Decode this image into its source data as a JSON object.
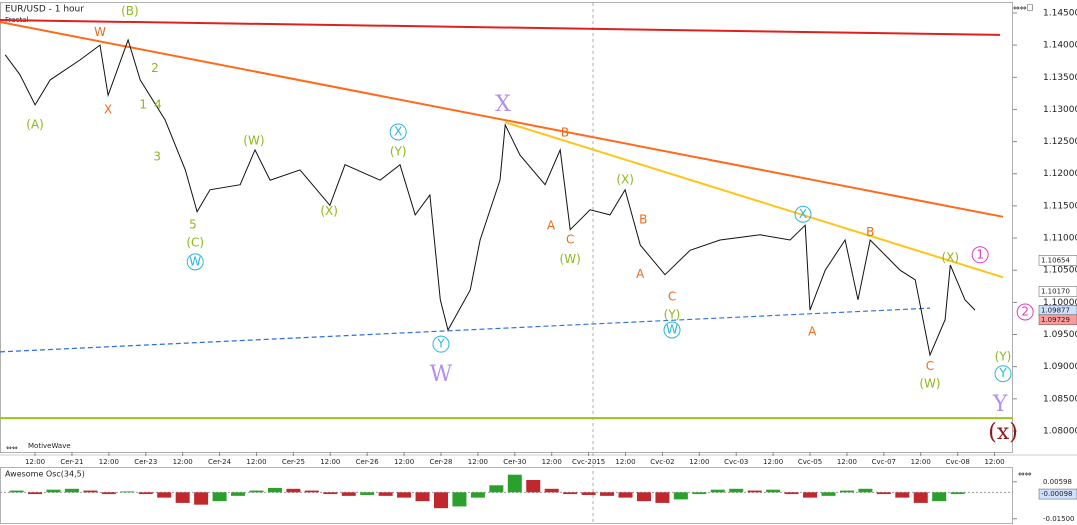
{
  "chart_data": [
    {
      "type": "line",
      "title": "EUR/USD - 1 hour",
      "subtitle": "Fractal",
      "footer": "MotiveWave",
      "color": "#111111",
      "x": [
        -0.81,
        -0.41,
        0,
        0.41,
        1.22,
        1.76,
        1.98,
        2.52,
        2.85,
        3.52,
        4.07,
        4.39,
        4.74,
        5.56,
        5.96,
        6.37,
        7.18,
        7.99,
        8.4,
        9.35,
        9.89,
        10.3,
        10.7,
        10.98,
        11.19,
        11.79,
        12.06,
        12.6,
        12.74,
        13.14,
        13.82,
        14.23,
        14.5,
        15.04,
        15.58,
        15.99,
        16.4,
        17.07,
        17.75,
        18.56,
        19.65,
        20.46,
        20.87,
        21.0,
        21.41,
        21.95,
        22.3,
        22.63,
        23.44,
        23.85,
        24.25,
        24.66,
        24.8,
        25.2,
        25.47
      ],
      "values": [
        1.1385,
        1.1354,
        1.1307,
        1.1346,
        1.1377,
        1.14,
        1.1322,
        1.1408,
        1.1346,
        1.1284,
        1.1206,
        1.1141,
        1.1175,
        1.1183,
        1.1237,
        1.119,
        1.1206,
        1.1151,
        1.1214,
        1.119,
        1.1214,
        1.1136,
        1.1167,
        1.1004,
        1.0957,
        1.1019,
        1.1097,
        1.119,
        1.1276,
        1.1229,
        1.1183,
        1.1237,
        1.1113,
        1.1144,
        1.1136,
        1.1175,
        1.1089,
        1.1043,
        1.1081,
        1.1097,
        1.1105,
        1.1097,
        1.112,
        1.0988,
        1.105,
        1.1097,
        1.1004,
        1.1097,
        1.105,
        1.1035,
        1.0918,
        1.0973,
        1.1058,
        1.1004,
        1.0988
      ],
      "xlim": [
        -0.95,
        26.5
      ],
      "ylim": [
        1.07673,
        1.14624
      ],
      "xticks": [
        {
          "value": 0,
          "label": "12:00"
        },
        {
          "value": 1,
          "label": "Cer-21"
        },
        {
          "value": 2,
          "label": "12:00"
        },
        {
          "value": 3,
          "label": "Cer-23"
        },
        {
          "value": 4,
          "label": "12:00"
        },
        {
          "value": 5,
          "label": "Cer-24"
        },
        {
          "value": 6,
          "label": "12:00"
        },
        {
          "value": 7,
          "label": "Cer-25"
        },
        {
          "value": 8,
          "label": "12:00"
        },
        {
          "value": 9,
          "label": "Cer-26"
        },
        {
          "value": 10,
          "label": "12:00"
        },
        {
          "value": 11,
          "label": "Cer-28"
        },
        {
          "value": 12,
          "label": "12:00"
        },
        {
          "value": 13,
          "label": "Cer-30"
        },
        {
          "value": 14,
          "label": "12:00"
        },
        {
          "value": 15,
          "label": "Cvc-2015"
        },
        {
          "value": 16,
          "label": "12:00"
        },
        {
          "value": 17,
          "label": "Cvc-02"
        },
        {
          "value": 18,
          "label": "12:00"
        },
        {
          "value": 19,
          "label": "Cvc-03"
        },
        {
          "value": 20,
          "label": "12:00"
        },
        {
          "value": 21,
          "label": "Cvc-05"
        },
        {
          "value": 22,
          "label": "12:00"
        },
        {
          "value": 23,
          "label": "Cvc-07"
        },
        {
          "value": 24,
          "label": "12:00"
        },
        {
          "value": 25,
          "label": "Cvc-08"
        },
        {
          "value": 26,
          "label": "12:00"
        }
      ],
      "yticks": [
        {
          "value": 1.145,
          "label": "1.14500"
        },
        {
          "value": 1.14,
          "label": "1.14000"
        },
        {
          "value": 1.135,
          "label": "1.13500"
        },
        {
          "value": 1.13,
          "label": "1.13000"
        },
        {
          "value": 1.125,
          "label": "1.12500"
        },
        {
          "value": 1.12,
          "label": "1.12000"
        },
        {
          "value": 1.115,
          "label": "1.11500"
        },
        {
          "value": 1.11,
          "label": "1.11000"
        },
        {
          "value": 1.105,
          "label": "1.10500"
        },
        {
          "value": 1.1,
          "label": "1.10000"
        },
        {
          "value": 1.095,
          "label": "1.09500"
        },
        {
          "value": 1.09,
          "label": "1.09000"
        },
        {
          "value": 1.085,
          "label": "1.08500"
        },
        {
          "value": 1.08,
          "label": "1.08000"
        }
      ],
      "price_labels": [
        {
          "value": 1.10654,
          "color": "#ffffff"
        },
        {
          "value": {
            "value": 1.1017,
            "label": "1.10170"
          },
          "color": "#ffffff"
        },
        {
          "value": 1.09877,
          "color": "#cfe0ff"
        },
        {
          "value": 1.09729,
          "color": "#ff9a9a"
        }
      ],
      "session_break_x": 15.12,
      "trend_lines": [
        {
          "color": "#e0201c",
          "dashed": false,
          "x": [
            -0.95,
            26.15
          ],
          "y": [
            1.1439,
            1.1416
          ]
        },
        {
          "color": "#ff6a1a",
          "dashed": false,
          "x": [
            -0.95,
            26.23
          ],
          "y": [
            1.1436,
            1.1133
          ]
        },
        {
          "color": "#ffc41a",
          "dashed": false,
          "x": [
            12.74,
            26.23
          ],
          "y": [
            1.128,
            1.1039
          ]
        },
        {
          "color": "#2f6fe0",
          "dashed": true,
          "x": [
            -0.95,
            24.25
          ],
          "y": [
            1.0923,
            1.0991
          ]
        },
        {
          "color": "#9cc21a",
          "dashed": false,
          "x": [
            -0.95,
            26.5
          ],
          "y": [
            1.082,
            1.082
          ]
        }
      ],
      "annotations": [
        {
          "text": "(A)",
          "x": 0,
          "y": 1.1276,
          "color": "#8cb81a"
        },
        {
          "text": "W",
          "x": 1.76,
          "y": 1.142,
          "color": "#f06a1a"
        },
        {
          "text": "(B)",
          "x": 2.57,
          "y": 1.1452,
          "color": "#8cb81a"
        },
        {
          "text": "X",
          "x": 1.98,
          "y": 1.1299,
          "color": "#f06a1a"
        },
        {
          "text": "2",
          "x": 3.25,
          "y": 1.1364,
          "color": "#8cb81a"
        },
        {
          "text": "1",
          "x": 2.93,
          "y": 1.1307,
          "color": "#8cb81a"
        },
        {
          "text": "4",
          "x": 3.33,
          "y": 1.1307,
          "color": "#8cb81a"
        },
        {
          "text": "3",
          "x": 3.31,
          "y": 1.1226,
          "color": "#8cb81a"
        },
        {
          "text": "5",
          "x": 4.28,
          "y": 1.112,
          "color": "#8cb81a"
        },
        {
          "text": "(C)",
          "x": 4.34,
          "y": 1.1092,
          "color": "#8cb81a"
        },
        {
          "text": "W",
          "x": 4.34,
          "y": 1.1063,
          "color": "#29b8d8",
          "circle": true
        },
        {
          "text": "(W)",
          "x": 5.93,
          "y": 1.1251,
          "color": "#8cb81a"
        },
        {
          "text": "(X)",
          "x": 7.97,
          "y": 1.1141,
          "color": "#8cb81a"
        },
        {
          "text": "X",
          "x": 9.84,
          "y": 1.1265,
          "color": "#29b8d8",
          "circle": true
        },
        {
          "text": "(Y)",
          "x": 9.84,
          "y": 1.1234,
          "color": "#8cb81a"
        },
        {
          "text": "Y",
          "x": 11.0,
          "y": 1.0935,
          "color": "#29b8d8",
          "circle": true
        },
        {
          "text": "W",
          "x": 11.0,
          "y": 1.0887,
          "color": "#b48ef0",
          "size": "large"
        },
        {
          "text": "X",
          "x": 12.68,
          "y": 1.1307,
          "color": "#b48ef0",
          "size": "large"
        },
        {
          "text": "B",
          "x": 14.36,
          "y": 1.1263,
          "color": "#f06a1a"
        },
        {
          "text": "A",
          "x": 13.98,
          "y": 1.1119,
          "color": "#f06a1a"
        },
        {
          "text": "C",
          "x": 14.5,
          "y": 1.1097,
          "color": "#f06a1a"
        },
        {
          "text": "(W)",
          "x": 14.5,
          "y": 1.1067,
          "color": "#8cb81a"
        },
        {
          "text": "(X)",
          "x": 15.99,
          "y": 1.119,
          "color": "#8cb81a"
        },
        {
          "text": "B",
          "x": 16.48,
          "y": 1.1128,
          "color": "#f06a1a"
        },
        {
          "text": "A",
          "x": 16.4,
          "y": 1.1043,
          "color": "#f06a1a"
        },
        {
          "text": "C",
          "x": 17.26,
          "y": 1.1008,
          "color": "#f06a1a"
        },
        {
          "text": "(Y)",
          "x": 17.26,
          "y": 1.098,
          "color": "#8cb81a"
        },
        {
          "text": "W",
          "x": 17.26,
          "y": 1.0957,
          "color": "#29b8d8",
          "circle": true
        },
        {
          "text": "X",
          "x": 20.81,
          "y": 1.1137,
          "color": "#29b8d8",
          "circle": true
        },
        {
          "text": "A",
          "x": 21.06,
          "y": 1.0954,
          "color": "#f06a1a"
        },
        {
          "text": "B",
          "x": 22.63,
          "y": 1.1109,
          "color": "#f06a1a"
        },
        {
          "text": "C",
          "x": 24.25,
          "y": 1.09,
          "color": "#f06a1a"
        },
        {
          "text": "(W)",
          "x": 24.25,
          "y": 1.0873,
          "color": "#8cb81a"
        },
        {
          "text": "(X)",
          "x": 24.8,
          "y": 1.1069,
          "color": "#8cb81a"
        },
        {
          "text": "1",
          "x": 25.61,
          "y": 1.1074,
          "color": "#e040c0",
          "circle": true
        },
        {
          "text": "2",
          "x": 26.83,
          "y": 1.0985,
          "color": "#e040c0",
          "circle": true
        },
        {
          "text": "(Y)",
          "x": 26.23,
          "y": 1.0915,
          "color": "#8cb81a"
        },
        {
          "text": "Y",
          "x": 26.23,
          "y": 1.0889,
          "color": "#29b8d8",
          "circle": true
        },
        {
          "text": "Y",
          "x": 26.15,
          "y": 1.084,
          "color": "#b48ef0",
          "size": "large"
        },
        {
          "text": "(x)",
          "x": 26.23,
          "y": 1.0797,
          "color": "#8b1a1a",
          "size": "large"
        }
      ]
    },
    {
      "type": "bar",
      "title": "Awesome Osc(34,5)",
      "up_color": "#2ca02c",
      "down_color": "#c0282d",
      "x": [
        -0.5,
        0,
        0.5,
        1,
        1.5,
        2,
        2.5,
        3,
        3.5,
        4,
        4.5,
        5,
        5.5,
        6,
        6.5,
        7,
        7.5,
        8,
        8.5,
        9,
        9.5,
        10,
        10.5,
        11,
        11.5,
        12,
        12.5,
        13,
        13.5,
        14,
        14.5,
        15,
        15.5,
        16,
        16.5,
        17,
        17.5,
        18,
        18.5,
        19,
        19.5,
        20,
        20.5,
        21,
        21.5,
        22,
        22.5,
        23,
        23.5,
        24,
        24.5,
        25
      ],
      "values": [
        0.001,
        -0.001,
        0.0015,
        0.002,
        0.001,
        -0.001,
        0.0005,
        -0.001,
        -0.003,
        -0.006,
        -0.007,
        -0.005,
        -0.002,
        0.001,
        0.0025,
        0.002,
        0.001,
        -0.001,
        -0.002,
        -0.0015,
        -0.002,
        -0.003,
        -0.005,
        -0.009,
        -0.008,
        -0.003,
        0.004,
        0.01,
        0.007,
        0.002,
        -0.001,
        -0.0015,
        -0.002,
        -0.003,
        -0.005,
        -0.006,
        -0.004,
        -0.001,
        0.0015,
        0.002,
        0.001,
        0.0015,
        -0.001,
        -0.003,
        -0.002,
        0.001,
        0.002,
        -0.001,
        -0.003,
        -0.006,
        -0.005,
        -0.001
      ],
      "xlim": [
        -0.95,
        26.5
      ],
      "ylim": [
        -0.0174,
        0.0138
      ],
      "yticks": [
        0.00598,
        {
          "value": -0.015,
          "label": "-0.01500"
        }
      ],
      "current_value": -0.00098
    }
  ]
}
